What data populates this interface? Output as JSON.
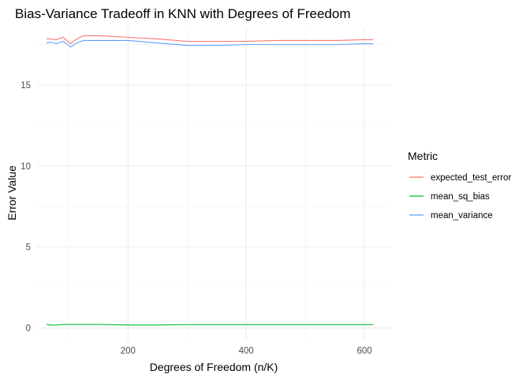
{
  "chart_data": {
    "type": "line",
    "title": "Bias-Variance Tradeoff in KNN with Degrees of Freedom",
    "xlabel": "Degrees of Freedom (n/K)",
    "ylabel": "Error Value",
    "xlim": [
      46,
      644
    ],
    "ylim": [
      -0.8,
      18.6
    ],
    "x_ticks": [
      200,
      400,
      600
    ],
    "y_ticks": [
      0,
      5,
      10,
      15
    ],
    "x_minor_ticks": [
      100,
      300,
      500
    ],
    "y_minor_ticks": [
      2.5,
      7.5,
      12.5,
      17.5
    ],
    "grid": true,
    "legend": {
      "title": "Metric",
      "position": "right"
    },
    "series": [
      {
        "name": "expected_test_error",
        "color": "#F8766D",
        "points": [
          [
            62,
            17.85
          ],
          [
            70,
            17.85
          ],
          [
            78,
            17.8
          ],
          [
            90,
            17.95
          ],
          [
            103,
            17.55
          ],
          [
            113,
            17.85
          ],
          [
            125,
            18.05
          ],
          [
            150,
            18.05
          ],
          [
            200,
            17.95
          ],
          [
            250,
            17.85
          ],
          [
            300,
            17.7
          ],
          [
            350,
            17.7
          ],
          [
            400,
            17.7
          ],
          [
            450,
            17.75
          ],
          [
            500,
            17.75
          ],
          [
            550,
            17.75
          ],
          [
            600,
            17.8
          ],
          [
            615,
            17.8
          ]
        ]
      },
      {
        "name": "mean_sq_bias",
        "color": "#00BA38",
        "points": [
          [
            62,
            0.23
          ],
          [
            70,
            0.18
          ],
          [
            80,
            0.19
          ],
          [
            90,
            0.22
          ],
          [
            103,
            0.22
          ],
          [
            125,
            0.22
          ],
          [
            150,
            0.22
          ],
          [
            200,
            0.19
          ],
          [
            250,
            0.19
          ],
          [
            300,
            0.21
          ],
          [
            350,
            0.21
          ],
          [
            400,
            0.21
          ],
          [
            450,
            0.21
          ],
          [
            500,
            0.21
          ],
          [
            550,
            0.21
          ],
          [
            600,
            0.21
          ],
          [
            615,
            0.21
          ]
        ]
      },
      {
        "name": "mean_variance",
        "color": "#619CFF",
        "points": [
          [
            62,
            17.6
          ],
          [
            70,
            17.65
          ],
          [
            78,
            17.55
          ],
          [
            90,
            17.7
          ],
          [
            103,
            17.35
          ],
          [
            113,
            17.6
          ],
          [
            125,
            17.75
          ],
          [
            150,
            17.75
          ],
          [
            200,
            17.75
          ],
          [
            250,
            17.6
          ],
          [
            300,
            17.45
          ],
          [
            350,
            17.45
          ],
          [
            400,
            17.5
          ],
          [
            450,
            17.5
          ],
          [
            500,
            17.5
          ],
          [
            550,
            17.5
          ],
          [
            600,
            17.55
          ],
          [
            615,
            17.55
          ]
        ]
      }
    ]
  }
}
